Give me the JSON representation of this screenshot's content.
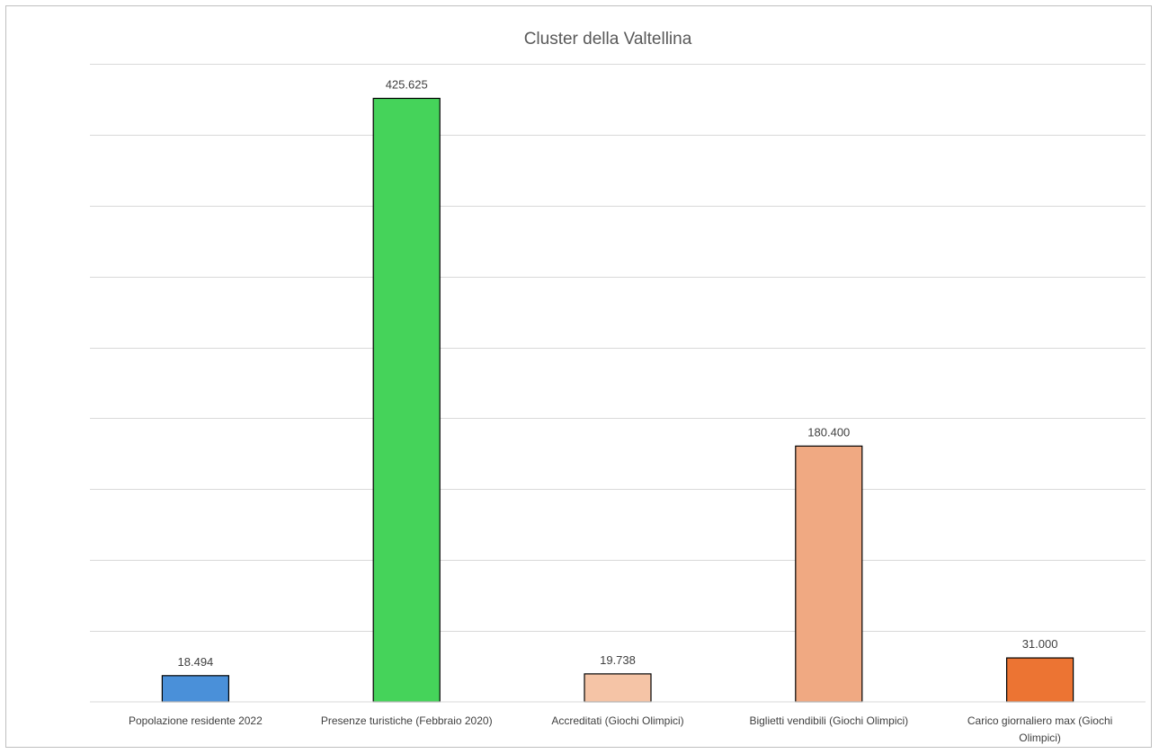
{
  "chart_data": {
    "type": "bar",
    "title": "Cluster della Valtellina",
    "xlabel": "",
    "ylabel": "",
    "ylim": [
      0,
      450000
    ],
    "grid": true,
    "legend": "none",
    "categories": [
      [
        "Popolazione residente 2022"
      ],
      [
        "Presenze turistiche (Febbraio 2020)"
      ],
      [
        "Accreditati (Giochi Olimpici)"
      ],
      [
        "Biglietti vendibili (Giochi Olimpici)"
      ],
      [
        "Carico giornaliero max (Giochi",
        "Olimpici)"
      ]
    ],
    "values": [
      18494,
      425625,
      19738,
      180400,
      31000
    ],
    "data_labels": [
      "18.494",
      "425.625",
      "19.738",
      "180.400",
      "31.000"
    ],
    "colors": [
      "#4a90d9",
      "#45d35a",
      "#f5c4a6",
      "#f0a982",
      "#ec7433"
    ]
  }
}
